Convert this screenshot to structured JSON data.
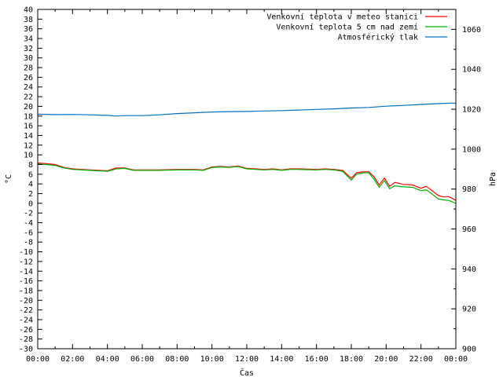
{
  "chart_data": {
    "type": "line",
    "xlabel": "Čas",
    "ylabel_left": "°C",
    "ylabel_right": "hPa",
    "x_range": [
      0,
      24
    ],
    "y_left_range": [
      -30,
      40
    ],
    "y_right_range": [
      900,
      1070
    ],
    "x_ticks": [
      "00:00",
      "02:00",
      "04:00",
      "06:00",
      "08:00",
      "10:00",
      "12:00",
      "14:00",
      "16:00",
      "18:00",
      "20:00",
      "22:00",
      "00:00"
    ],
    "y_left_ticks": [
      "-30",
      "-28",
      "-26",
      "-24",
      "-22",
      "-20",
      "-18",
      "-16",
      "-14",
      "-12",
      "-10",
      "-8",
      "-6",
      "-4",
      "-2",
      "0",
      "2",
      "4",
      "6",
      "8",
      "10",
      "12",
      "14",
      "16",
      "18",
      "20",
      "22",
      "24",
      "26",
      "28",
      "30",
      "32",
      "34",
      "36",
      "38",
      "40"
    ],
    "y_right_ticks": [
      "900",
      "920",
      "940",
      "960",
      "980",
      "1000",
      "1020",
      "1040",
      "1060"
    ],
    "legend_position": "top-right",
    "grid": false,
    "series": [
      {
        "name": "Venkovní teplota v meteo stanici",
        "axis": "left",
        "color": "#ff0000",
        "points": [
          [
            0,
            8.3
          ],
          [
            0.5,
            8.2
          ],
          [
            1,
            8.0
          ],
          [
            1.5,
            7.4
          ],
          [
            2,
            7.1
          ],
          [
            2.5,
            7.0
          ],
          [
            3,
            6.9
          ],
          [
            3.5,
            6.8
          ],
          [
            4,
            6.7
          ],
          [
            4.5,
            7.3
          ],
          [
            5,
            7.3
          ],
          [
            5.5,
            6.9
          ],
          [
            6,
            6.9
          ],
          [
            7,
            6.9
          ],
          [
            8,
            7.0
          ],
          [
            9,
            7.0
          ],
          [
            9.5,
            6.9
          ],
          [
            10,
            7.5
          ],
          [
            10.5,
            7.6
          ],
          [
            11,
            7.5
          ],
          [
            11.5,
            7.7
          ],
          [
            12,
            7.2
          ],
          [
            12.5,
            7.1
          ],
          [
            13,
            7.0
          ],
          [
            13.5,
            7.1
          ],
          [
            14,
            6.9
          ],
          [
            14.5,
            7.1
          ],
          [
            15,
            7.1
          ],
          [
            16,
            7.0
          ],
          [
            16.5,
            7.1
          ],
          [
            17,
            7.0
          ],
          [
            17.5,
            6.8
          ],
          [
            18,
            5.2
          ],
          [
            18.3,
            6.3
          ],
          [
            18.7,
            6.5
          ],
          [
            19,
            6.5
          ],
          [
            19.3,
            5.5
          ],
          [
            19.6,
            3.8
          ],
          [
            19.9,
            5.2
          ],
          [
            20.2,
            3.5
          ],
          [
            20.5,
            4.3
          ],
          [
            21,
            3.9
          ],
          [
            21.5,
            3.8
          ],
          [
            22,
            3.1
          ],
          [
            22.3,
            3.5
          ],
          [
            22.6,
            2.7
          ],
          [
            23,
            1.6
          ],
          [
            23.3,
            1.3
          ],
          [
            23.6,
            1.4
          ],
          [
            24,
            0.6
          ]
        ]
      },
      {
        "name": "Venkovní teplota 5 cm nad zemí",
        "axis": "left",
        "color": "#00b000",
        "points": [
          [
            0,
            8.1
          ],
          [
            0.5,
            8.0
          ],
          [
            1,
            7.8
          ],
          [
            1.5,
            7.3
          ],
          [
            2,
            7.0
          ],
          [
            2.5,
            6.9
          ],
          [
            3,
            6.8
          ],
          [
            3.5,
            6.7
          ],
          [
            4,
            6.6
          ],
          [
            4.5,
            7.1
          ],
          [
            5,
            7.2
          ],
          [
            5.5,
            6.8
          ],
          [
            6,
            6.8
          ],
          [
            7,
            6.8
          ],
          [
            8,
            6.9
          ],
          [
            9,
            6.9
          ],
          [
            9.5,
            6.8
          ],
          [
            10,
            7.4
          ],
          [
            10.5,
            7.5
          ],
          [
            11,
            7.4
          ],
          [
            11.5,
            7.6
          ],
          [
            12,
            7.1
          ],
          [
            12.5,
            7.0
          ],
          [
            13,
            6.9
          ],
          [
            13.5,
            7.0
          ],
          [
            14,
            6.8
          ],
          [
            14.5,
            7.0
          ],
          [
            15,
            7.0
          ],
          [
            16,
            6.9
          ],
          [
            16.5,
            7.0
          ],
          [
            17,
            6.9
          ],
          [
            17.5,
            6.6
          ],
          [
            18,
            4.8
          ],
          [
            18.3,
            6.0
          ],
          [
            18.7,
            6.3
          ],
          [
            19,
            6.3
          ],
          [
            19.3,
            5.0
          ],
          [
            19.6,
            3.3
          ],
          [
            19.9,
            4.7
          ],
          [
            20.2,
            3.0
          ],
          [
            20.5,
            3.6
          ],
          [
            21,
            3.4
          ],
          [
            21.5,
            3.3
          ],
          [
            22,
            2.6
          ],
          [
            22.3,
            2.8
          ],
          [
            22.6,
            2.0
          ],
          [
            23,
            0.9
          ],
          [
            23.3,
            0.7
          ],
          [
            23.6,
            0.6
          ],
          [
            24,
            0.0
          ]
        ]
      },
      {
        "name": "Atmosférický tlak",
        "axis": "right",
        "color": "#0070c0",
        "points": [
          [
            0,
            1017.5
          ],
          [
            1,
            1017.3
          ],
          [
            2,
            1017.4
          ],
          [
            3,
            1017.2
          ],
          [
            4,
            1016.9
          ],
          [
            4.5,
            1016.6
          ],
          [
            5,
            1016.8
          ],
          [
            6,
            1016.8
          ],
          [
            7,
            1017.2
          ],
          [
            8,
            1017.8
          ],
          [
            9,
            1018.2
          ],
          [
            10,
            1018.6
          ],
          [
            11,
            1018.8
          ],
          [
            12,
            1018.9
          ],
          [
            13,
            1019.1
          ],
          [
            14,
            1019.3
          ],
          [
            15,
            1019.6
          ],
          [
            16,
            1019.9
          ],
          [
            17,
            1020.2
          ],
          [
            18,
            1020.6
          ],
          [
            19,
            1020.9
          ],
          [
            20,
            1021.5
          ],
          [
            21,
            1021.9
          ],
          [
            22,
            1022.4
          ],
          [
            23,
            1022.8
          ],
          [
            24,
            1023.1
          ]
        ]
      }
    ]
  }
}
